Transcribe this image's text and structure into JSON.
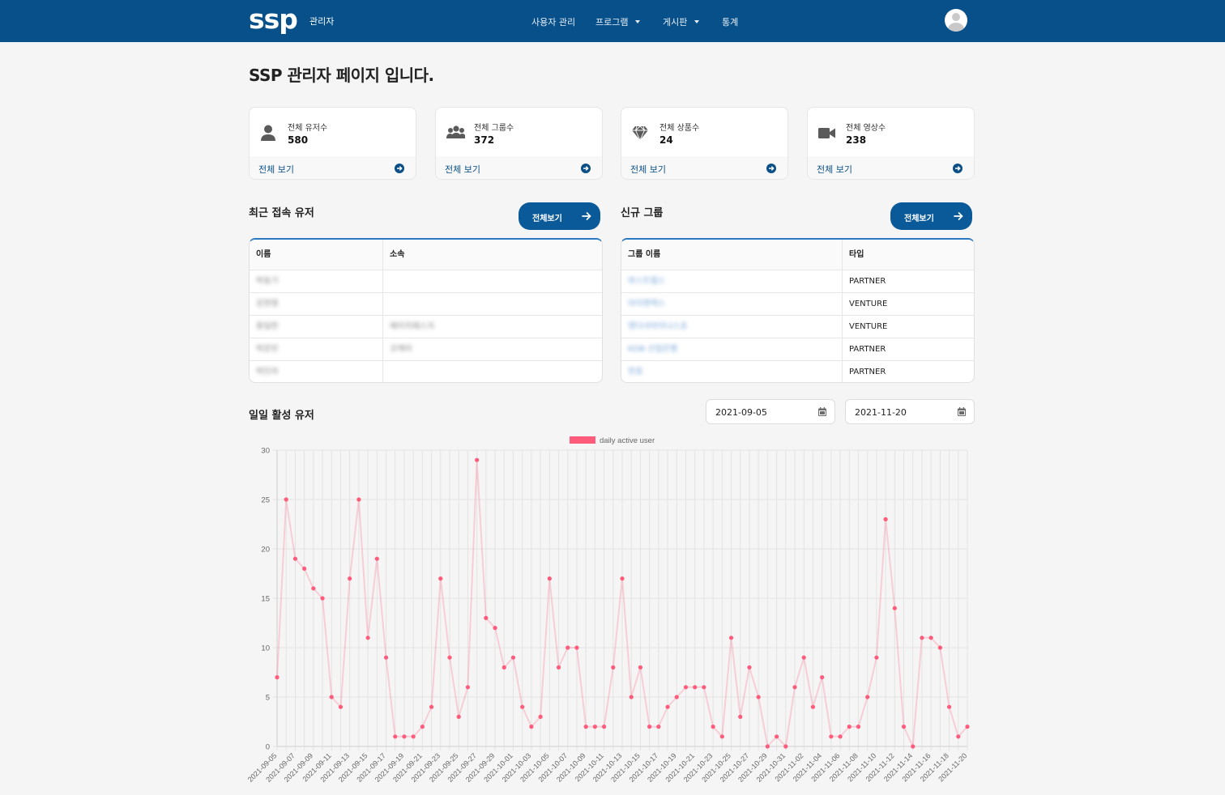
{
  "nav": {
    "logo": "ssp",
    "logo_sub": "관리자",
    "menu": [
      {
        "label": "사용자 관리",
        "dropdown": false
      },
      {
        "label": "프로그램",
        "dropdown": true
      },
      {
        "label": "게시판",
        "dropdown": true
      },
      {
        "label": "통계",
        "dropdown": false
      }
    ],
    "avatar_icon": "user-avatar-icon"
  },
  "page_title": "SSP 관리자 페이지 입니다.",
  "cards": [
    {
      "label": "전체 유저수",
      "value": "580",
      "link": "전체 보기",
      "icon": "user-icon"
    },
    {
      "label": "전체 그룹수",
      "value": "372",
      "link": "전체 보기",
      "icon": "users-icon"
    },
    {
      "label": "전체 상품수",
      "value": "24",
      "link": "전체 보기",
      "icon": "gem-icon"
    },
    {
      "label": "전체 영상수",
      "value": "238",
      "link": "전체 보기",
      "icon": "video-icon"
    }
  ],
  "recent_users": {
    "title": "최근 접속 유저",
    "button": "전체보기",
    "headers": [
      "이름",
      "소속"
    ],
    "rows": [
      [
        "박동기",
        ""
      ],
      [
        "강현영",
        ""
      ],
      [
        "황일한",
        "에이치에스지"
      ],
      [
        "박문빈",
        "코케어"
      ],
      [
        "박인자",
        ""
      ]
    ]
  },
  "new_groups": {
    "title": "신규 그룹",
    "button": "전체보기",
    "headers": [
      "그룹 이름",
      "타입"
    ],
    "rows": [
      [
        "와스트랩스",
        "PARTNER"
      ],
      [
        "아이엔랙스",
        "VENTURE"
      ],
      [
        "엔더샤마이나스포",
        "VENTURE"
      ],
      [
        "KDB 산업은행",
        "PARTNER"
      ],
      [
        "한웅",
        "PARTNER"
      ]
    ]
  },
  "dau": {
    "title": "일일 활성 유저",
    "start_date": "2021-09-05",
    "end_date": "2021-11-20"
  },
  "colors": {
    "nav": "#08508a",
    "accent": "#0a5a99",
    "series": "#ff5c7c"
  },
  "chart_data": {
    "type": "line",
    "legend": "daily active user",
    "legend_position": "top",
    "ylim": [
      0,
      30
    ],
    "yticks": [
      0,
      5,
      10,
      15,
      20,
      25,
      30
    ],
    "start": "2021-09-05",
    "xtick_labels": [
      "2021-09-05",
      "2021-09-07",
      "2021-09-09",
      "2021-09-11",
      "2021-09-13",
      "2021-09-15",
      "2021-09-17",
      "2021-09-19",
      "2021-09-21",
      "2021-09-23",
      "2021-09-25",
      "2021-09-27",
      "2021-09-29",
      "2021-10-01",
      "2021-10-03",
      "2021-10-05",
      "2021-10-07",
      "2021-10-09",
      "2021-10-11",
      "2021-10-13",
      "2021-10-15",
      "2021-10-17",
      "2021-10-19",
      "2021-10-21",
      "2021-10-23",
      "2021-10-25",
      "2021-10-27",
      "2021-10-29",
      "2021-10-31",
      "2021-11-02",
      "2021-11-04",
      "2021-11-06",
      "2021-11-08",
      "2021-11-10",
      "2021-11-12",
      "2021-11-14",
      "2021-11-16",
      "2021-11-18",
      "2021-11-20"
    ],
    "values": [
      7,
      25,
      19,
      18,
      16,
      15,
      5,
      4,
      17,
      25,
      11,
      19,
      9,
      1,
      1,
      1,
      2,
      4,
      17,
      9,
      3,
      6,
      29,
      13,
      12,
      8,
      9,
      4,
      2,
      3,
      17,
      8,
      10,
      10,
      2,
      2,
      2,
      8,
      17,
      5,
      8,
      2,
      2,
      4,
      5,
      6,
      6,
      6,
      2,
      1,
      11,
      3,
      8,
      5,
      0,
      1,
      0,
      6,
      9,
      4,
      7,
      1,
      1,
      2,
      2,
      5,
      9,
      23,
      14,
      2,
      0,
      11,
      11,
      10,
      4,
      1,
      2
    ],
    "grid": true
  }
}
